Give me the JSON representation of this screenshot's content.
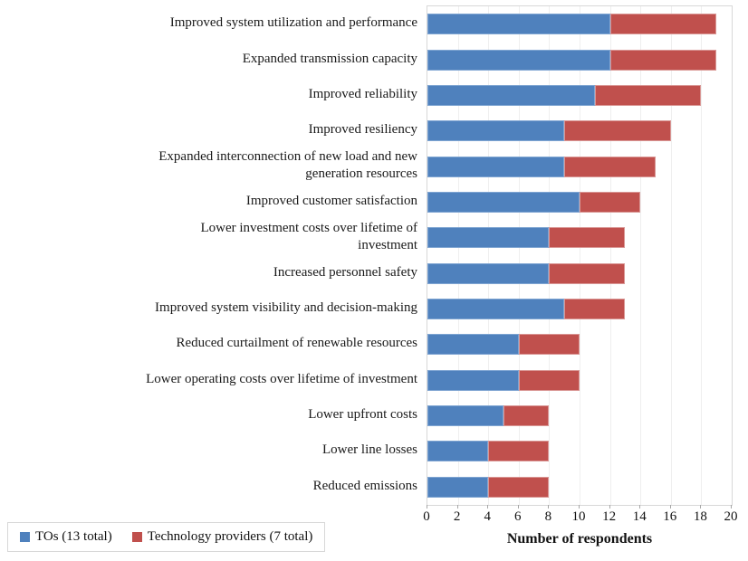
{
  "chart_data": {
    "type": "bar",
    "orientation": "horizontal",
    "stacked": true,
    "title": "",
    "xlabel": "Number of respondents",
    "ylabel": "",
    "xlim": [
      0,
      20
    ],
    "x_ticks": [
      0,
      2,
      4,
      6,
      8,
      10,
      12,
      14,
      16,
      18,
      20
    ],
    "grid": "vertical major gridlines every 2",
    "legend_position": "bottom-left",
    "categories": [
      "Improved system utilization and performance",
      "Expanded transmission capacity",
      "Improved reliability",
      "Improved resiliency",
      "Expanded interconnection of new load and new\ngeneration resources",
      "Improved customer satisfaction",
      "Lower investment costs over lifetime of\ninvestment",
      "Increased personnel safety",
      "Improved system visibility and decision-making",
      "Reduced curtailment of renewable resources",
      "Lower operating costs over lifetime of investment",
      "Lower upfront costs",
      "Lower line losses",
      "Reduced emissions"
    ],
    "series": [
      {
        "name": "TOs (13 total)",
        "color": "#4F81BD",
        "border_color": "#7FA5D2",
        "values": [
          12,
          12,
          11,
          9,
          9,
          10,
          8,
          8,
          9,
          6,
          6,
          5,
          4,
          4
        ]
      },
      {
        "name": "Technology providers (7 total)",
        "color": "#C0504D",
        "border_color": "#D99694",
        "values": [
          7,
          7,
          7,
          7,
          6,
          4,
          5,
          5,
          4,
          4,
          4,
          3,
          4,
          4
        ]
      }
    ]
  }
}
